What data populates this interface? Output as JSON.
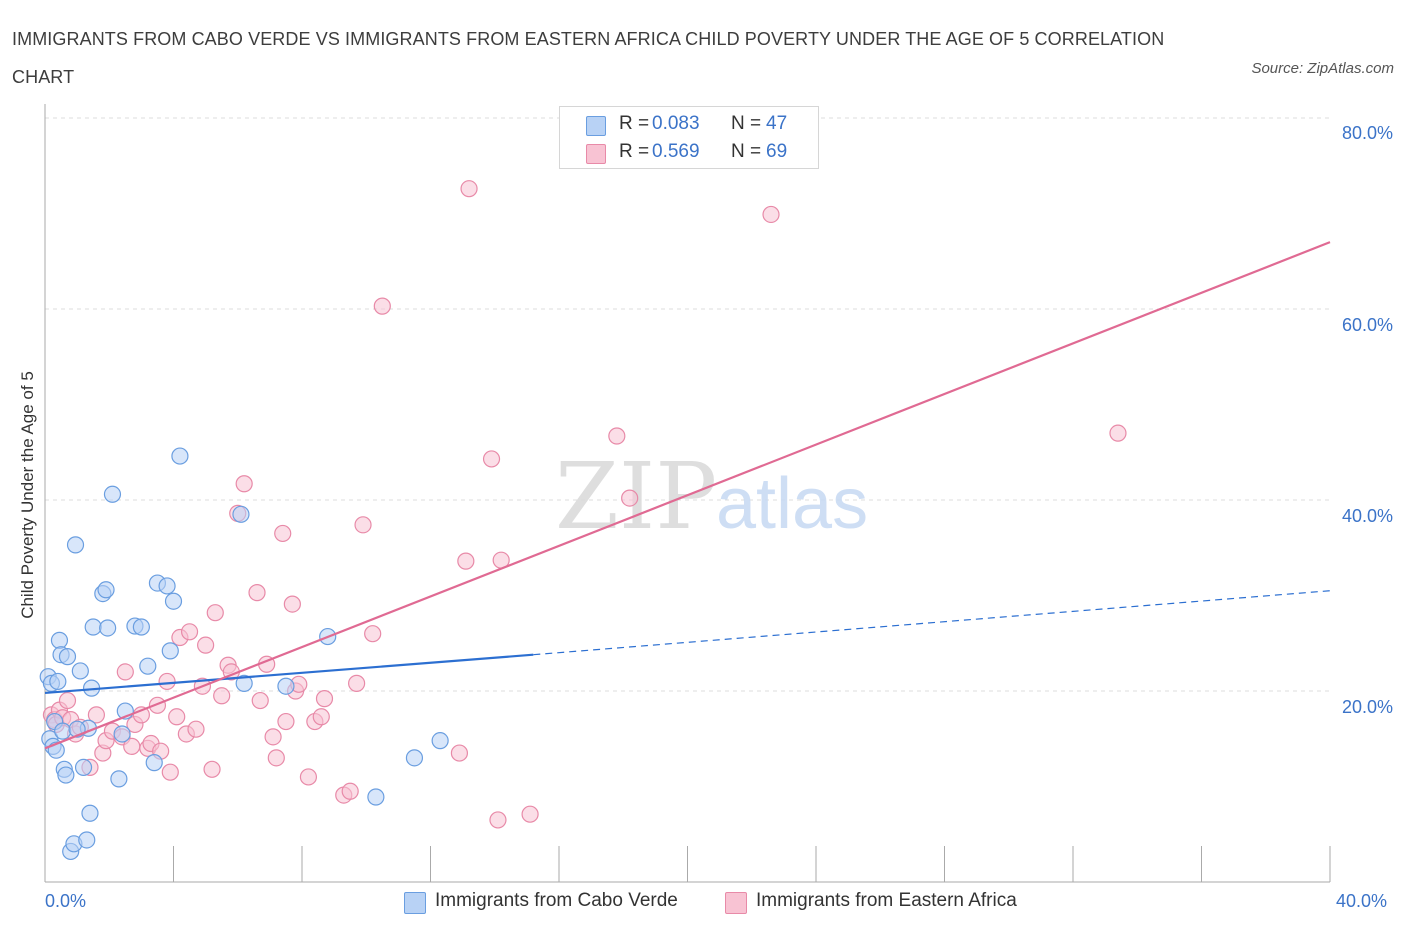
{
  "header": {
    "title": "IMMIGRANTS FROM CABO VERDE VS IMMIGRANTS FROM EASTERN AFRICA CHILD POVERTY UNDER THE AGE OF 5 CORRELATION CHART",
    "source": "Source: ZipAtlas.com"
  },
  "watermark": {
    "zip": "ZIP",
    "atlas": "atlas"
  },
  "colors": {
    "blue_fill": "#b8d2f5",
    "blue_stroke": "#6a9ee0",
    "blue_line": "#2c6fd1",
    "pink_fill": "#f8c3d3",
    "pink_stroke": "#e88aa8",
    "pink_line": "#e06a93",
    "tick_text": "#3b73c8",
    "grid": "#dddddd"
  },
  "legend": {
    "rows": [
      {
        "r_label": "R = ",
        "r_value": "0.083",
        "n_label": "N = ",
        "n_value": "47"
      },
      {
        "r_label": "R = ",
        "r_value": "0.569",
        "n_label": "N = ",
        "n_value": "69"
      }
    ]
  },
  "bottom_legend": {
    "blue": "Immigrants from Cabo Verde",
    "pink": "Immigrants from Eastern Africa"
  },
  "axes": {
    "ylabel": "Child Poverty Under the Age of 5",
    "y_ticks": [
      "80.0%",
      "60.0%",
      "40.0%",
      "20.0%"
    ],
    "x_left": "0.0%",
    "x_right": "40.0%"
  },
  "chart_data": {
    "type": "scatter",
    "title": "IMMIGRANTS FROM CABO VERDE VS IMMIGRANTS FROM EASTERN AFRICA CHILD POVERTY UNDER THE AGE OF 5 CORRELATION CHART",
    "xlabel": "",
    "ylabel": "Child Poverty Under the Age of 5",
    "xlim": [
      0,
      40
    ],
    "ylim": [
      0,
      80
    ],
    "y_ticks": [
      20,
      40,
      60,
      80
    ],
    "grid": true,
    "legend_position": "top-center",
    "series": [
      {
        "name": "Immigrants from Cabo Verde",
        "R": 0.083,
        "N": 47,
        "trend": {
          "x": [
            0,
            15.2
          ],
          "y": [
            19.8,
            23.8
          ],
          "dashed_to": [
            40,
            30.5
          ]
        },
        "points": [
          [
            0.1,
            21.5
          ],
          [
            0.2,
            20.8
          ],
          [
            0.15,
            15.0
          ],
          [
            0.25,
            14.2
          ],
          [
            0.3,
            16.8
          ],
          [
            0.4,
            21.0
          ],
          [
            0.45,
            25.3
          ],
          [
            0.5,
            23.8
          ],
          [
            0.6,
            11.8
          ],
          [
            0.65,
            11.2
          ],
          [
            0.7,
            23.6
          ],
          [
            0.8,
            3.2
          ],
          [
            0.9,
            4.0
          ],
          [
            0.95,
            35.3
          ],
          [
            1.1,
            22.1
          ],
          [
            1.2,
            12.0
          ],
          [
            1.3,
            4.4
          ],
          [
            1.35,
            16.1
          ],
          [
            1.4,
            7.2
          ],
          [
            1.45,
            20.3
          ],
          [
            1.5,
            26.7
          ],
          [
            1.8,
            30.2
          ],
          [
            1.9,
            30.6
          ],
          [
            1.95,
            26.6
          ],
          [
            2.1,
            40.6
          ],
          [
            2.3,
            10.8
          ],
          [
            2.4,
            15.5
          ],
          [
            2.5,
            17.9
          ],
          [
            2.8,
            26.8
          ],
          [
            3.0,
            26.7
          ],
          [
            3.2,
            22.6
          ],
          [
            3.4,
            12.5
          ],
          [
            3.5,
            31.3
          ],
          [
            3.8,
            31.0
          ],
          [
            3.9,
            24.2
          ],
          [
            4.0,
            29.4
          ],
          [
            4.2,
            44.6
          ],
          [
            6.1,
            38.5
          ],
          [
            6.2,
            20.8
          ],
          [
            7.5,
            20.5
          ],
          [
            8.8,
            25.7
          ],
          [
            10.3,
            8.9
          ],
          [
            11.5,
            13.0
          ],
          [
            12.3,
            14.8
          ],
          [
            0.35,
            13.8
          ],
          [
            0.55,
            15.8
          ],
          [
            1.0,
            16.0
          ]
        ]
      },
      {
        "name": "Immigrants from Eastern Africa",
        "R": 0.569,
        "N": 69,
        "trend": {
          "x": [
            0,
            40
          ],
          "y": [
            14.0,
            67.0
          ]
        },
        "points": [
          [
            0.2,
            17.5
          ],
          [
            0.3,
            17.0
          ],
          [
            0.35,
            16.5
          ],
          [
            0.45,
            18.0
          ],
          [
            0.55,
            17.2
          ],
          [
            0.7,
            19.0
          ],
          [
            0.8,
            17.0
          ],
          [
            0.95,
            15.5
          ],
          [
            1.1,
            16.2
          ],
          [
            1.4,
            12.0
          ],
          [
            1.6,
            17.5
          ],
          [
            1.8,
            13.5
          ],
          [
            1.9,
            14.8
          ],
          [
            2.1,
            15.8
          ],
          [
            2.4,
            15.2
          ],
          [
            2.5,
            22.0
          ],
          [
            2.7,
            14.2
          ],
          [
            2.8,
            16.5
          ],
          [
            3.0,
            17.5
          ],
          [
            3.2,
            14.0
          ],
          [
            3.3,
            14.5
          ],
          [
            3.5,
            18.5
          ],
          [
            3.6,
            13.7
          ],
          [
            3.8,
            21.0
          ],
          [
            3.9,
            11.5
          ],
          [
            4.1,
            17.3
          ],
          [
            4.2,
            25.6
          ],
          [
            4.4,
            15.5
          ],
          [
            4.5,
            26.2
          ],
          [
            4.7,
            16.0
          ],
          [
            4.9,
            20.5
          ],
          [
            5.0,
            24.8
          ],
          [
            5.2,
            11.8
          ],
          [
            5.3,
            28.2
          ],
          [
            5.5,
            19.5
          ],
          [
            5.7,
            22.7
          ],
          [
            5.8,
            22.0
          ],
          [
            6.0,
            38.6
          ],
          [
            6.2,
            41.7
          ],
          [
            6.6,
            30.3
          ],
          [
            6.7,
            19.0
          ],
          [
            6.9,
            22.8
          ],
          [
            7.1,
            15.2
          ],
          [
            7.2,
            13.0
          ],
          [
            7.4,
            36.5
          ],
          [
            7.5,
            16.8
          ],
          [
            7.7,
            29.1
          ],
          [
            7.8,
            20.0
          ],
          [
            7.9,
            20.7
          ],
          [
            8.2,
            11.0
          ],
          [
            8.4,
            16.8
          ],
          [
            8.6,
            17.3
          ],
          [
            8.7,
            19.2
          ],
          [
            9.3,
            9.1
          ],
          [
            9.5,
            9.5
          ],
          [
            9.7,
            20.8
          ],
          [
            9.9,
            37.4
          ],
          [
            10.2,
            26.0
          ],
          [
            10.5,
            60.3
          ],
          [
            12.9,
            13.5
          ],
          [
            13.1,
            33.6
          ],
          [
            13.2,
            72.6
          ],
          [
            13.9,
            44.3
          ],
          [
            14.1,
            6.5
          ],
          [
            14.2,
            33.7
          ],
          [
            15.1,
            7.1
          ],
          [
            17.8,
            46.7
          ],
          [
            18.2,
            40.2
          ],
          [
            22.6,
            69.9
          ],
          [
            33.4,
            47.0
          ]
        ]
      }
    ]
  }
}
